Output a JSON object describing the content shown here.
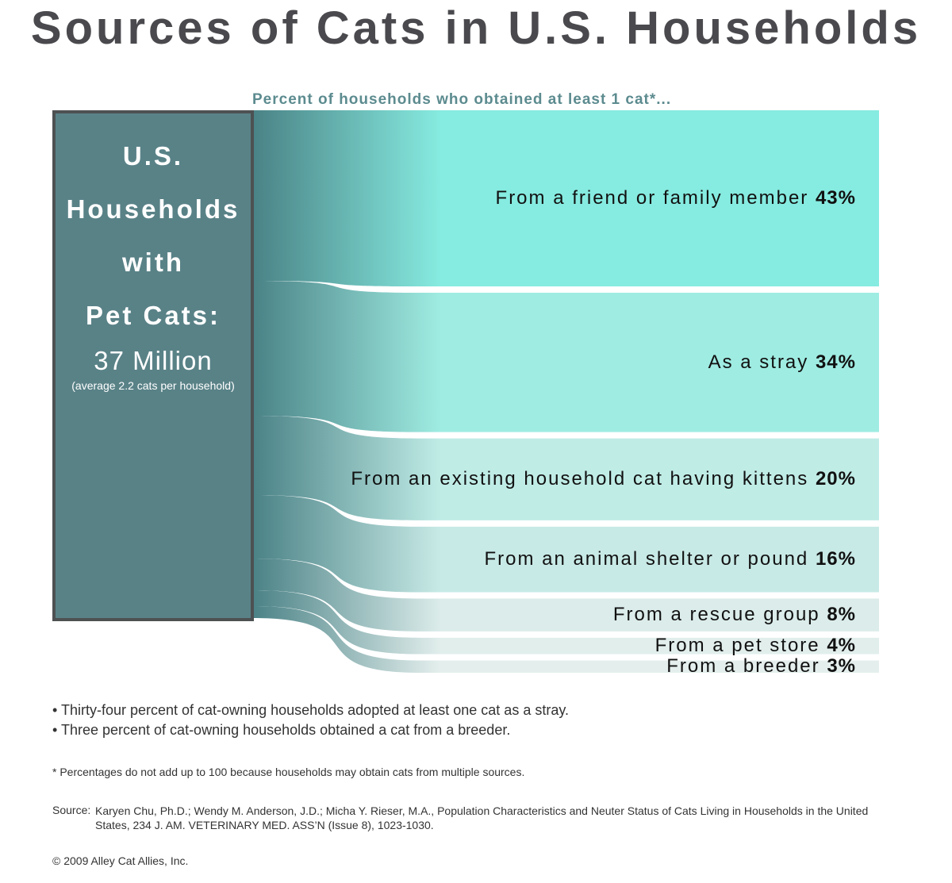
{
  "title": "Sources of Cats in U.S. Households",
  "chart_data": {
    "type": "bar",
    "subtitle": "Percent of households who obtained at least 1 cat*...",
    "categories": [
      "From a friend or family member",
      "As a stray",
      "From an existing household cat having kittens",
      "From an animal shelter or pound",
      "From a rescue group",
      "From a pet store",
      "From a breeder"
    ],
    "values": [
      43,
      34,
      20,
      16,
      8,
      4,
      3
    ],
    "value_labels": [
      "43%",
      "34%",
      "20%",
      "16%",
      "8%",
      "4%",
      "3%"
    ],
    "colors": [
      "#86ebe0",
      "#9fece2",
      "#c0ece6",
      "#c8eae6",
      "#dbecea",
      "#e1eeec",
      "#e4efed"
    ]
  },
  "households": {
    "line1": "U.S.",
    "line2": "Households",
    "line3": "with",
    "line4": "Pet Cats:",
    "total": "37 Million",
    "average": "(average 2.2 cats per household)"
  },
  "notes": [
    "• Thirty-four percent of cat-owning households adopted at least one cat as a stray.",
    "• Three percent of cat-owning households obtained a cat from a breeder."
  ],
  "footnote": "* Percentages do not add up to 100 because households may obtain cats from multiple sources.",
  "source_label": "Source:",
  "source_text": "Karyen Chu, Ph.D.; Wendy M. Anderson, J.D.; Micha Y. Rieser, M.A., Population Characteristics and Neuter Status of Cats Living in Households in the United States, 234 J. AM. VETERINARY MED. ASS’N (Issue 8), 1023-1030.",
  "copyright": "© 2009 Alley Cat Allies, Inc."
}
